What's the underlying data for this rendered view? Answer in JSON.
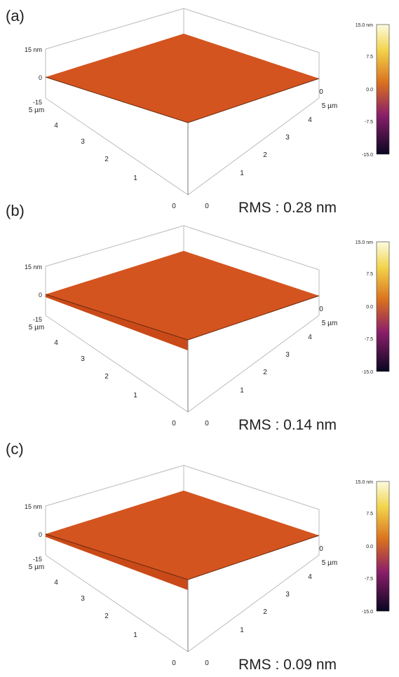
{
  "panels": [
    {
      "label": "(a)",
      "z_ticks": [
        "15 nm",
        "0",
        "-15"
      ],
      "left_ticks": [
        "5 µm",
        "4",
        "3",
        "2",
        "1",
        "0"
      ],
      "right_ticks": [
        "0",
        "1",
        "2",
        "3",
        "4",
        "5 µm",
        "0"
      ],
      "colorbar_ticks": [
        "15.0 nm",
        "7.5",
        "0.0",
        "-7.5",
        "-15.0"
      ],
      "rms": "RMS : 0.28 nm"
    },
    {
      "label": "(b)",
      "z_ticks": [
        "15 nm",
        "0",
        "-15"
      ],
      "left_ticks": [
        "5 µm",
        "4",
        "3",
        "2",
        "1",
        "0"
      ],
      "right_ticks": [
        "0",
        "1",
        "2",
        "3",
        "4",
        "5 µm",
        "0"
      ],
      "colorbar_ticks": [
        "15.0 nm",
        "7.5",
        "0.0",
        "-7.5",
        "-15.0"
      ],
      "rms": "RMS : 0.14 nm"
    },
    {
      "label": "(c)",
      "z_ticks": [
        "15 nm",
        "0",
        "-15"
      ],
      "left_ticks": [
        "5 µm",
        "4",
        "3",
        "2",
        "1",
        "0"
      ],
      "right_ticks": [
        "0",
        "1",
        "2",
        "3",
        "4",
        "5 µm",
        "0"
      ],
      "colorbar_ticks": [
        "15.0 nm",
        "7.5",
        "0.0",
        "-7.5",
        "-15.0"
      ],
      "rms": "RMS : 0.09 nm"
    }
  ]
}
